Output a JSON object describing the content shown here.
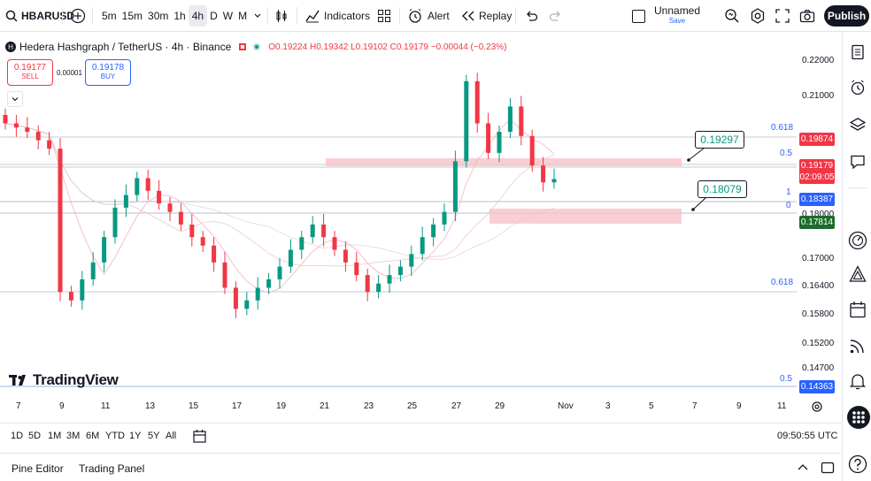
{
  "toolbar": {
    "symbol": "HBARUSD",
    "timeframes": [
      "5m",
      "15m",
      "30m",
      "1h",
      "4h",
      "D",
      "W",
      "M"
    ],
    "active_timeframe": "4h",
    "indicators_label": "Indicators",
    "alert_label": "Alert",
    "replay_label": "Replay",
    "layout_name": "Unnamed",
    "layout_sub": "Save",
    "publish_label": "Publish"
  },
  "legend": {
    "title": "Hedera Hashgraph / TetherUS · 4h · Binance",
    "open": "O0.19224",
    "high": "H0.19342",
    "low": "L0.19102",
    "close": "C0.19179",
    "change": "−0.00044 (−0.23%)"
  },
  "trade": {
    "sell_price": "0.19177",
    "sell_label": "SELL",
    "buy_price": "0.19178",
    "buy_label": "BUY",
    "spread": "0.00001"
  },
  "price_axis": [
    "0.22000",
    "0.21000",
    "0.18000",
    "0.17000",
    "0.16400",
    "0.15800",
    "0.15200",
    "0.14700"
  ],
  "price_tags": {
    "level_19874": "0.19874",
    "current_price": "0.19179",
    "countdown": "02:09:05",
    "level_18387": "0.18387",
    "level_17814": "0.17814",
    "level_14363": "0.14363"
  },
  "fib_labels": {
    "fib_618_top": "0.618",
    "fib_05_top": "0.5",
    "fib_1": "1",
    "fib_0": "0",
    "fib_618_bottom": "0.618",
    "fib_05_bottom": "0.5"
  },
  "callouts": {
    "upper": "0.19297",
    "lower": "0.18079"
  },
  "time_axis": [
    "7",
    "9",
    "11",
    "13",
    "15",
    "17",
    "19",
    "21",
    "23",
    "25",
    "27",
    "29",
    "Nov",
    "3",
    "5",
    "7",
    "9",
    "11"
  ],
  "ranges": [
    "1D",
    "5D",
    "1M",
    "3M",
    "6M",
    "YTD",
    "1Y",
    "5Y",
    "All"
  ],
  "clock": "09:50:55 UTC",
  "bottom": {
    "pine_editor": "Pine Editor",
    "trading_panel": "Trading Panel"
  },
  "brand": "TradingView",
  "colors": {
    "up": "#089981",
    "down": "#f23645",
    "accent": "#2962ff",
    "zone": "#f7c3c8"
  },
  "chart_data": {
    "type": "candlestick",
    "title": "Hedera Hashgraph / TetherUS · 4h · Binance",
    "ylim": [
      0.142,
      0.224
    ],
    "close_series": [
      0.205,
      0.204,
      0.203,
      0.201,
      0.199,
      0.165,
      0.163,
      0.168,
      0.172,
      0.178,
      0.185,
      0.188,
      0.192,
      0.189,
      0.186,
      0.184,
      0.181,
      0.178,
      0.176,
      0.172,
      0.166,
      0.161,
      0.163,
      0.166,
      0.168,
      0.171,
      0.175,
      0.178,
      0.181,
      0.178,
      0.175,
      0.172,
      0.169,
      0.165,
      0.167,
      0.169,
      0.171,
      0.174,
      0.178,
      0.181,
      0.184,
      0.196,
      0.215,
      0.205,
      0.198,
      0.203,
      0.209,
      0.202,
      0.195,
      0.191,
      0.19179
    ]
  }
}
